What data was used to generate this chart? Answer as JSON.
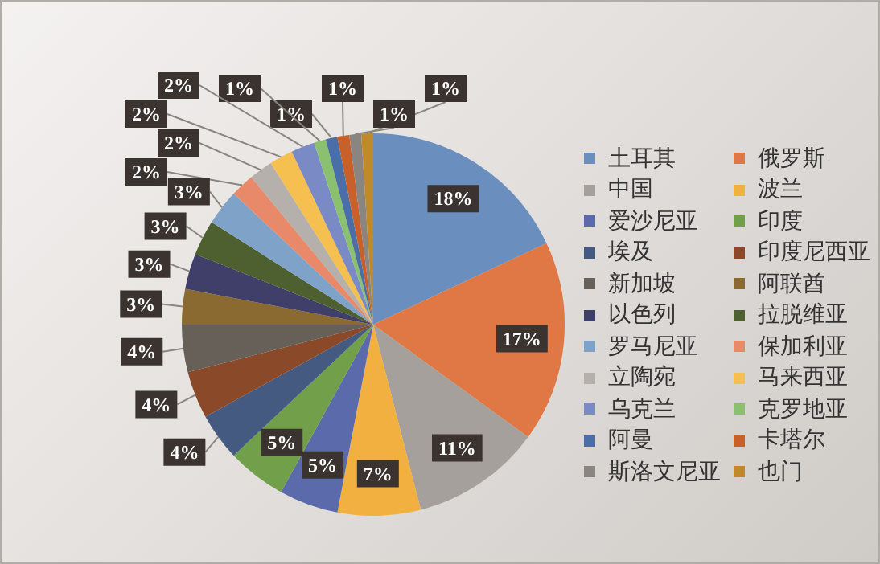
{
  "chart_data": {
    "type": "pie",
    "categories": [
      "土耳其",
      "俄罗斯",
      "中国",
      "波兰",
      "爱沙尼亚",
      "印度",
      "埃及",
      "印度尼西亚",
      "新加坡",
      "阿联酋",
      "以色列",
      "拉脱维亚",
      "罗马尼亚",
      "保加利亚",
      "立陶宛",
      "马来西亚",
      "乌克兰",
      "克罗地亚",
      "阿曼",
      "卡塔尔",
      "斯洛文尼亚",
      "也门"
    ],
    "values": [
      18,
      17,
      11,
      7,
      5,
      5,
      4,
      4,
      4,
      3,
      3,
      3,
      3,
      2,
      2,
      2,
      2,
      1,
      1,
      1,
      1,
      1
    ],
    "value_labels": [
      "18%",
      "17%",
      "11%",
      "7%",
      "5%",
      "5%",
      "4%",
      "4%",
      "4%",
      "3%",
      "3%",
      "3%",
      "3%",
      "2%",
      "2%",
      "2%",
      "2%",
      "1%",
      "1%",
      "1%",
      "1%",
      "1%"
    ],
    "colors": [
      "#6a8fbf",
      "#e07845",
      "#a5a09b",
      "#f2b040",
      "#5a6aaa",
      "#72a04a",
      "#445a80",
      "#8a4a2a",
      "#666058",
      "#8a6a30",
      "#3f3f6a",
      "#4f6030",
      "#7fa3c8",
      "#e88a6a",
      "#b5b0ab",
      "#f5c050",
      "#7a8ac5",
      "#8ac070",
      "#4a6fa8",
      "#c8602a",
      "#8a8580",
      "#c08a2a"
    ],
    "legend": "right"
  }
}
